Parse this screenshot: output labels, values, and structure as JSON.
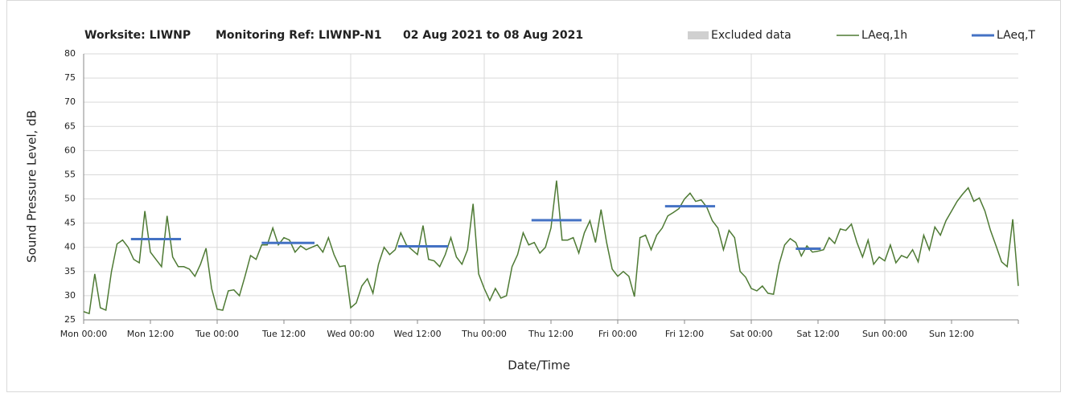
{
  "chart_data": {
    "type": "line",
    "title": [
      "Worksite: LIWNP",
      "Monitoring Ref: LIWNP-N1",
      "02 Aug 2021 to 08 Aug 2021"
    ],
    "xlabel": "Date/Time",
    "ylabel": "Sound Pressure Level, dB",
    "legend_excluded": {
      "name": "Excluded data",
      "color": "#d0d0d0"
    },
    "xlim": [
      0,
      168
    ],
    "ylim": [
      25,
      80
    ],
    "yticks": [
      25,
      30,
      35,
      40,
      45,
      50,
      55,
      60,
      65,
      70,
      75,
      80
    ],
    "xticks": [
      {
        "value": 0,
        "label": "Mon 00:00"
      },
      {
        "value": 12,
        "label": "Mon 12:00"
      },
      {
        "value": 24,
        "label": "Tue 00:00"
      },
      {
        "value": 36,
        "label": "Tue 12:00"
      },
      {
        "value": 48,
        "label": "Wed 00:00"
      },
      {
        "value": 60,
        "label": "Wed 12:00"
      },
      {
        "value": 72,
        "label": "Thu 00:00"
      },
      {
        "value": 84,
        "label": "Thu 12:00"
      },
      {
        "value": 96,
        "label": "Fri 00:00"
      },
      {
        "value": 108,
        "label": "Fri 12:00"
      },
      {
        "value": 120,
        "label": "Sat 00:00"
      },
      {
        "value": 132,
        "label": "Sat 12:00"
      },
      {
        "value": 144,
        "label": "Sun 00:00"
      },
      {
        "value": 156,
        "label": "Sun 12:00"
      }
    ],
    "grid": true,
    "series": [
      {
        "name": "LAeq,1h",
        "color": "#4e7a34",
        "x": [
          0,
          1,
          2,
          3,
          4,
          5,
          6,
          7,
          8,
          9,
          10,
          11,
          12,
          13,
          14,
          15,
          16,
          17,
          18,
          19,
          20,
          21,
          22,
          23,
          24,
          25,
          26,
          27,
          28,
          29,
          30,
          31,
          32,
          33,
          34,
          35,
          36,
          37,
          38,
          39,
          40,
          41,
          42,
          43,
          44,
          45,
          46,
          47,
          48,
          49,
          50,
          51,
          52,
          53,
          54,
          55,
          56,
          57,
          58,
          59,
          60,
          61,
          62,
          63,
          64,
          65,
          66,
          67,
          68,
          69,
          70,
          71,
          72,
          73,
          74,
          75,
          76,
          77,
          78,
          79,
          80,
          81,
          82,
          83,
          84,
          85,
          86,
          87,
          88,
          89,
          90,
          91,
          92,
          93,
          94,
          95,
          96,
          97,
          98,
          99,
          100,
          101,
          102,
          103,
          104,
          105,
          106,
          107,
          108,
          109,
          110,
          111,
          112,
          113,
          114,
          115,
          116,
          117,
          118,
          119,
          120,
          121,
          122,
          123,
          124,
          125,
          126,
          127,
          128,
          129,
          130,
          131,
          132,
          133,
          134,
          135,
          136,
          137,
          138,
          139,
          140,
          141,
          142,
          143,
          144,
          145,
          146,
          147,
          148,
          149,
          150,
          151,
          152,
          153,
          154,
          155,
          156,
          157,
          158,
          159,
          160,
          161,
          162,
          163,
          164,
          165,
          166,
          167,
          168
        ],
        "values": [
          26.7,
          26.3,
          34.5,
          27.5,
          27,
          35,
          40.7,
          41.5,
          40,
          37.5,
          36.8,
          47.5,
          39,
          37.5,
          36,
          46.5,
          38,
          36,
          36,
          35.5,
          34,
          36.5,
          39.8,
          31.5,
          27.2,
          27,
          31,
          31.2,
          30,
          34,
          38.3,
          37.5,
          40.5,
          40.5,
          44,
          40.5,
          42,
          41.5,
          39,
          40.3,
          39.5,
          40,
          40.5,
          39,
          42,
          38.5,
          36,
          36.2,
          27.5,
          28.5,
          32,
          33.5,
          30.5,
          36.5,
          40,
          38.5,
          39.5,
          43,
          40.5,
          39.5,
          38.5,
          44.5,
          37.5,
          37.2,
          36,
          38.5,
          42,
          38,
          36.5,
          39.5,
          49,
          34.5,
          31.5,
          29,
          31.5,
          29.5,
          30,
          36,
          38.5,
          43,
          40.5,
          41,
          38.8,
          40,
          44,
          53.8,
          41.5,
          41.5,
          42,
          38.8,
          43,
          45.5,
          41,
          47.8,
          41,
          35.5,
          34,
          35,
          34,
          29.8,
          42,
          42.5,
          39.5,
          42.5,
          44,
          46.5,
          47.2,
          48,
          50,
          51.2,
          49.5,
          49.8,
          48.3,
          45.5,
          44,
          39.5,
          43.5,
          42,
          35,
          33.8,
          31.5,
          31,
          32,
          30.5,
          30.3,
          36.5,
          40.5,
          41.8,
          41,
          38.2,
          40.3,
          39,
          39.2,
          39.5,
          42,
          40.8,
          43.8,
          43.5,
          44.8,
          41,
          38,
          41.5,
          36.5,
          38,
          37.2,
          40.5,
          36.8,
          38.3,
          37.8,
          39.5,
          37,
          42.5,
          39.5,
          44.2,
          42.5,
          45.5,
          47.5,
          49.5,
          51,
          52.3,
          49.5,
          50.2,
          47.5,
          43.5,
          40.3,
          37,
          36,
          45.8,
          32
        ]
      },
      {
        "name": "LAeq,T",
        "color": "#4472c4",
        "segments": [
          {
            "x": [
              8.5,
              17.5
            ],
            "value": 41.7
          },
          {
            "x": [
              32,
              41.5
            ],
            "value": 40.9
          },
          {
            "x": [
              56.5,
              65.5
            ],
            "value": 40.2
          },
          {
            "x": [
              80.5,
              89.5
            ],
            "value": 45.6
          },
          {
            "x": [
              104.5,
              113.5
            ],
            "value": 48.5
          },
          {
            "x": [
              128,
              132.5
            ],
            "value": 39.7
          }
        ]
      }
    ]
  }
}
